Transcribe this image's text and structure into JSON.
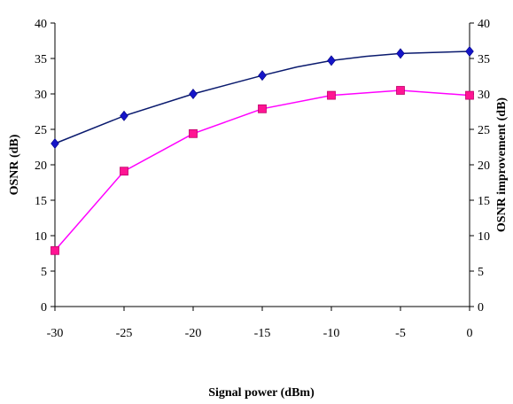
{
  "chart_data": {
    "type": "line",
    "title": "",
    "xlabel": "Signal power (dBm)",
    "ylabel": "OSNR (dB)",
    "y2label": "OSNR improvement (dB)",
    "xlim": [
      -30,
      0
    ],
    "ylim": [
      0,
      40
    ],
    "y2lim": [
      0,
      40
    ],
    "x_ticks": [
      -30,
      -25,
      -20,
      -15,
      -10,
      -5,
      0
    ],
    "y_ticks": [
      0,
      5,
      10,
      15,
      20,
      25,
      30,
      35,
      40
    ],
    "y2_ticks": [
      0,
      5,
      10,
      15,
      20,
      25,
      30,
      35,
      40
    ],
    "grid": false,
    "legend": "none",
    "series": [
      {
        "axis": "left",
        "marker": "diamond",
        "color": "#0a1a6e",
        "marker_color": "#1515c8",
        "x": [
          -30,
          -25,
          -20,
          -15,
          -12.5,
          -10,
          -7.5,
          -5,
          0
        ],
        "y": [
          23.0,
          26.9,
          30.0,
          32.6,
          33.8,
          34.7,
          35.3,
          35.7,
          36.0
        ],
        "markers_at": [
          -30,
          -25,
          -20,
          -15,
          -10,
          -5,
          0
        ]
      },
      {
        "axis": "right",
        "marker": "square",
        "color": "#ff00ff",
        "marker_color": "#ff1493",
        "x": [
          -30,
          -25,
          -20,
          -15,
          -10,
          -5,
          0
        ],
        "y": [
          7.9,
          19.1,
          24.4,
          27.9,
          29.8,
          30.5,
          29.8
        ],
        "markers_at": [
          -30,
          -25,
          -20,
          -15,
          -10,
          -5,
          0
        ]
      }
    ]
  }
}
